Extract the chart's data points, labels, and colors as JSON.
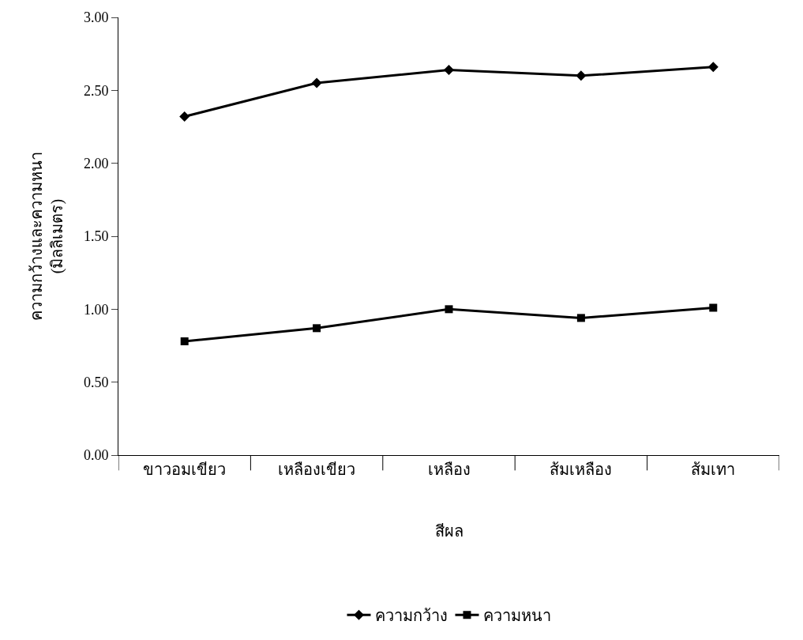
{
  "chart_data": {
    "type": "line",
    "xlabel": "สีผล",
    "ylabel": "ความกว้างและความหนา\n(มิลลิเมตร)",
    "categories": [
      "ขาวอมเขียว",
      "เหลืองเขียว",
      "เหลือง",
      "ส้มเหลือง",
      "ส้มเทา"
    ],
    "series": [
      {
        "name": "ความกว้าง",
        "color": "#000000",
        "marker": "diamond",
        "values": [
          2.32,
          2.55,
          2.64,
          2.6,
          2.66
        ]
      },
      {
        "name": "ความหนา",
        "color": "#000000",
        "marker": "square",
        "values": [
          0.78,
          0.87,
          1.0,
          0.94,
          1.01
        ]
      }
    ],
    "ylim": [
      0,
      3
    ],
    "yticks": [
      {
        "value": 0,
        "label": "0.00"
      },
      {
        "value": 0.5,
        "label": "0.50"
      },
      {
        "value": 1,
        "label": "1.00"
      },
      {
        "value": 1.5,
        "label": "1.50"
      },
      {
        "value": 2,
        "label": "2.00"
      },
      {
        "value": 2.5,
        "label": "2.50"
      },
      {
        "value": 3,
        "label": "3.00"
      }
    ],
    "legend": "bottom",
    "line_style": "solid"
  }
}
